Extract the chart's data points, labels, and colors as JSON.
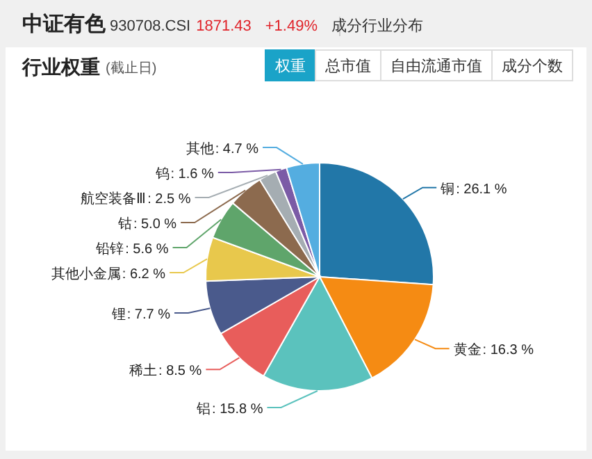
{
  "chart_data": {
    "type": "pie",
    "title": "中证有色",
    "subtitle": "行业权重",
    "annotations": [
      "930708.CSI",
      "1871.43",
      "+1.49%",
      "成分行业分布",
      "(截止日)",
      "权重",
      "总市值",
      "自由流通市值",
      "成分个数"
    ],
    "categories": [
      "铜",
      "黄金",
      "铝",
      "稀土",
      "锂",
      "其他小金属",
      "铅锌",
      "钴",
      "航空装备Ⅲ",
      "钨",
      "其他"
    ],
    "values": [
      26.1,
      16.3,
      15.8,
      8.5,
      7.7,
      6.2,
      5.6,
      5.0,
      2.5,
      1.6,
      4.7
    ],
    "colors": [
      "#2277a8",
      "#f58b13",
      "#5bc2bd",
      "#e85d5b",
      "#4a5a8c",
      "#e8c84c",
      "#5fa56b",
      "#8c6a4e",
      "#a5adb2",
      "#7b5ba6",
      "#54ade0"
    ],
    "value_labels": [
      ": 26.1 %",
      ": 16.3 %",
      ": 15.8 %",
      ": 8.5 %",
      ": 7.7 %",
      ": 6.2 %",
      ": 5.6 %",
      ": 5.0 %",
      ": 2.5 %",
      ": 1.6 %",
      ": 4.7 %"
    ]
  }
}
